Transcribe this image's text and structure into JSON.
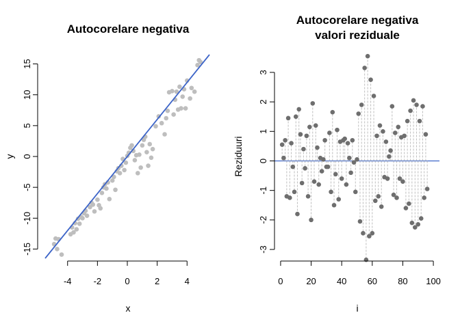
{
  "chart_data": [
    {
      "type": "scatter",
      "title": "Autocorelare negativa",
      "xlabel": "x",
      "ylabel": "y",
      "xlim": [
        -5.5,
        5.5
      ],
      "ylim": [
        -16.5,
        16.5
      ],
      "xticks": [
        -4,
        -2,
        0,
        2,
        4
      ],
      "yticks": [
        -15,
        -10,
        -5,
        0,
        5,
        10,
        15
      ],
      "points_color": "#bebebe",
      "line_color": "#3c64c8",
      "regression_line": {
        "intercept": 0.0,
        "slope": 3.0
      },
      "points": [
        [
          -4.9,
          -14.2
        ],
        [
          -4.8,
          -13.3
        ],
        [
          -4.7,
          -15.0
        ],
        [
          -4.6,
          -13.4
        ],
        [
          -4.4,
          -15.9
        ],
        [
          -3.8,
          -12.6
        ],
        [
          -3.7,
          -11.5
        ],
        [
          -3.6,
          -12.3
        ],
        [
          -3.5,
          -10.8
        ],
        [
          -3.4,
          -11.8
        ],
        [
          -3.3,
          -10.1
        ],
        [
          -3.2,
          -10.9
        ],
        [
          -3.1,
          -9.8
        ],
        [
          -3.0,
          -10.0
        ],
        [
          -2.9,
          -9.2
        ],
        [
          -2.8,
          -8.8
        ],
        [
          -2.7,
          -9.6
        ],
        [
          -2.5,
          -8.2
        ],
        [
          -2.4,
          -7.5
        ],
        [
          -2.3,
          -7.8
        ],
        [
          -2.2,
          -8.9
        ],
        [
          -2.0,
          -7.0
        ],
        [
          -1.9,
          -7.9
        ],
        [
          -1.8,
          -8.4
        ],
        [
          -1.7,
          -5.9
        ],
        [
          -1.6,
          -5.0
        ],
        [
          -1.5,
          -4.5
        ],
        [
          -1.4,
          -5.2
        ],
        [
          -1.3,
          -4.2
        ],
        [
          -1.2,
          -6.9
        ],
        [
          -1.0,
          -3.9
        ],
        [
          -0.9,
          -3.3
        ],
        [
          -0.8,
          -5.4
        ],
        [
          -0.7,
          -2.4
        ],
        [
          -0.6,
          -1.9
        ],
        [
          -0.5,
          -2.7
        ],
        [
          -0.4,
          -1.5
        ],
        [
          -0.3,
          -0.4
        ],
        [
          -0.2,
          -2.2
        ],
        [
          -0.1,
          -1.0
        ],
        [
          0.0,
          0.1
        ],
        [
          0.1,
          0.6
        ],
        [
          0.2,
          1.4
        ],
        [
          0.3,
          1.8
        ],
        [
          0.4,
          0.9
        ],
        [
          0.5,
          -0.6
        ],
        [
          0.6,
          0.2
        ],
        [
          0.7,
          -2.7
        ],
        [
          0.8,
          0.3
        ],
        [
          0.9,
          -1.8
        ],
        [
          1.0,
          1.8
        ],
        [
          1.1,
          2.7
        ],
        [
          1.2,
          3.2
        ],
        [
          1.3,
          0.7
        ],
        [
          1.4,
          -1.5
        ],
        [
          1.5,
          2.0
        ],
        [
          1.6,
          -0.2
        ],
        [
          1.7,
          1.2
        ],
        [
          1.9,
          4.9
        ],
        [
          2.1,
          6.5
        ],
        [
          2.3,
          5.4
        ],
        [
          2.5,
          3.6
        ],
        [
          2.6,
          6.2
        ],
        [
          2.7,
          7.4
        ],
        [
          2.8,
          10.4
        ],
        [
          3.0,
          10.6
        ],
        [
          3.1,
          6.8
        ],
        [
          3.2,
          9.2
        ],
        [
          3.3,
          10.5
        ],
        [
          3.4,
          7.6
        ],
        [
          3.5,
          11.3
        ],
        [
          3.6,
          7.8
        ],
        [
          3.7,
          9.7
        ],
        [
          3.8,
          10.9
        ],
        [
          3.9,
          7.8
        ],
        [
          4.0,
          12.3
        ],
        [
          4.2,
          9.4
        ],
        [
          4.3,
          11.1
        ],
        [
          4.5,
          10.5
        ],
        [
          4.7,
          14.8
        ],
        [
          4.8,
          15.6
        ],
        [
          4.9,
          15.3
        ]
      ]
    },
    {
      "type": "scatter",
      "title_lines": [
        "Autocorelare negativa",
        "valori reziduale"
      ],
      "xlabel": "i",
      "ylabel": "Reziduuri",
      "xlim": [
        -4,
        104
      ],
      "ylim": [
        -3.3,
        3.6
      ],
      "xticks": [
        0,
        20,
        40,
        60,
        80,
        100
      ],
      "yticks": [
        -3,
        -2,
        -1,
        0,
        1,
        2,
        3
      ],
      "points_color": "#6e6e6e",
      "stem_color": "#bebebe",
      "baseline_color": "#3c64c8",
      "values": [
        0.05,
        0.55,
        0.1,
        0.7,
        1.45,
        0.6,
        -0.2,
        1.5,
        0.05,
        1.75,
        -0.75,
        -1.2,
        0.65,
        0.4,
        -1.25,
        1.95,
        -0.9,
        -0.15,
        -1.5,
        0.55,
        -0.7,
        0.45,
        1.85,
        0.9,
        -0.8,
        -0.55,
        -0.25,
        0.7,
        0.85,
        1.7,
        0.35,
        -0.2,
        0.9,
        -1.8,
        -0.35,
        1.0,
        1.25,
        -0.6,
        -1.05,
        1.2,
        0.75,
        0.25,
        -0.75,
        0.6,
        0.8,
        -0.4,
        1.55,
        1.2,
        0.0,
        0.8,
        -0.6,
        1.4,
        1.25,
        0.15,
        0.95,
        2.15,
        1.15,
        -2.0,
        0.55,
        3.55,
        2.75,
        -2.5,
        2.2,
        -1.35,
        1.55,
        0.05,
        -1.1,
        0.95,
        -0.45,
        -0.3,
        1.75,
        1.3,
        0.8,
        -0.7,
        -1.2,
        1.85,
        -1.55,
        0.35,
        -0.55,
        0.75,
        1.15,
        0.1,
        1.85,
        -0.65,
        0.9,
        -2.05,
        -1.45,
        1.7,
        2.05,
        -1.85,
        -2.25,
        1.35,
        0.95,
        -1.6,
        -1.95,
        -2.15,
        0.65,
        1.6,
        -1.2,
        0.9,
        -0.95
      ],
      "highlight_points": [
        [
          1,
          0.55
        ],
        [
          2,
          0.1
        ],
        [
          3,
          0.7
        ],
        [
          4,
          -1.2
        ],
        [
          5,
          1.45
        ],
        [
          6,
          -1.25
        ],
        [
          7,
          0.6
        ],
        [
          8,
          -0.2
        ],
        [
          9,
          -1.05
        ],
        [
          10,
          1.5
        ],
        [
          11,
          -1.8
        ],
        [
          12,
          1.75
        ],
        [
          13,
          0.9
        ],
        [
          14,
          -0.75
        ],
        [
          15,
          0.4
        ],
        [
          16,
          -0.25
        ],
        [
          17,
          0.85
        ],
        [
          18,
          -1.2
        ],
        [
          19,
          1.15
        ],
        [
          20,
          -2.0
        ],
        [
          21,
          1.95
        ],
        [
          22,
          -0.7
        ],
        [
          23,
          1.2
        ],
        [
          24,
          0.45
        ],
        [
          25,
          -0.8
        ],
        [
          26,
          0.1
        ],
        [
          27,
          -0.35
        ],
        [
          28,
          0.05
        ],
        [
          29,
          0.7
        ],
        [
          30,
          -0.2
        ],
        [
          31,
          -0.2
        ],
        [
          32,
          0.95
        ],
        [
          33,
          -1.05
        ],
        [
          34,
          1.65
        ],
        [
          35,
          -1.5
        ],
        [
          36,
          -0.45
        ],
        [
          37,
          1.05
        ],
        [
          38,
          -1.3
        ],
        [
          39,
          0.65
        ],
        [
          40,
          -0.6
        ],
        [
          41,
          0.7
        ],
        [
          42,
          0.75
        ],
        [
          43,
          -0.8
        ],
        [
          44,
          0.6
        ],
        [
          45,
          0.1
        ],
        [
          46,
          -0.4
        ],
        [
          47,
          0.7
        ],
        [
          48,
          -0.05
        ],
        [
          49,
          -1.05
        ],
        [
          50,
          0.05
        ],
        [
          51,
          1.6
        ],
        [
          52,
          -2.05
        ],
        [
          53,
          1.9
        ],
        [
          54,
          -2.45
        ],
        [
          55,
          3.15
        ],
        [
          56,
          -3.35
        ],
        [
          57,
          3.55
        ],
        [
          58,
          -2.55
        ],
        [
          59,
          2.75
        ],
        [
          60,
          -2.45
        ],
        [
          61,
          2.2
        ],
        [
          62,
          -1.35
        ],
        [
          63,
          0.85
        ],
        [
          64,
          -1.2
        ],
        [
          65,
          1.2
        ],
        [
          66,
          -1.55
        ],
        [
          67,
          1.0
        ],
        [
          68,
          -0.55
        ],
        [
          69,
          0.65
        ],
        [
          70,
          -0.6
        ],
        [
          71,
          0.15
        ],
        [
          72,
          0.35
        ],
        [
          73,
          1.85
        ],
        [
          74,
          -1.15
        ],
        [
          75,
          0.95
        ],
        [
          76,
          -1.25
        ],
        [
          77,
          1.15
        ],
        [
          78,
          -0.6
        ],
        [
          79,
          0.8
        ],
        [
          80,
          -0.7
        ],
        [
          81,
          0.85
        ],
        [
          82,
          -1.6
        ],
        [
          83,
          1.35
        ],
        [
          84,
          -1.45
        ],
        [
          85,
          1.7
        ],
        [
          86,
          -2.1
        ],
        [
          87,
          2.05
        ],
        [
          88,
          -2.25
        ],
        [
          89,
          1.9
        ],
        [
          90,
          -2.15
        ],
        [
          91,
          1.35
        ],
        [
          92,
          -1.95
        ],
        [
          93,
          1.85
        ],
        [
          94,
          -1.25
        ],
        [
          95,
          0.9
        ],
        [
          96,
          -0.95
        ]
      ]
    }
  ]
}
